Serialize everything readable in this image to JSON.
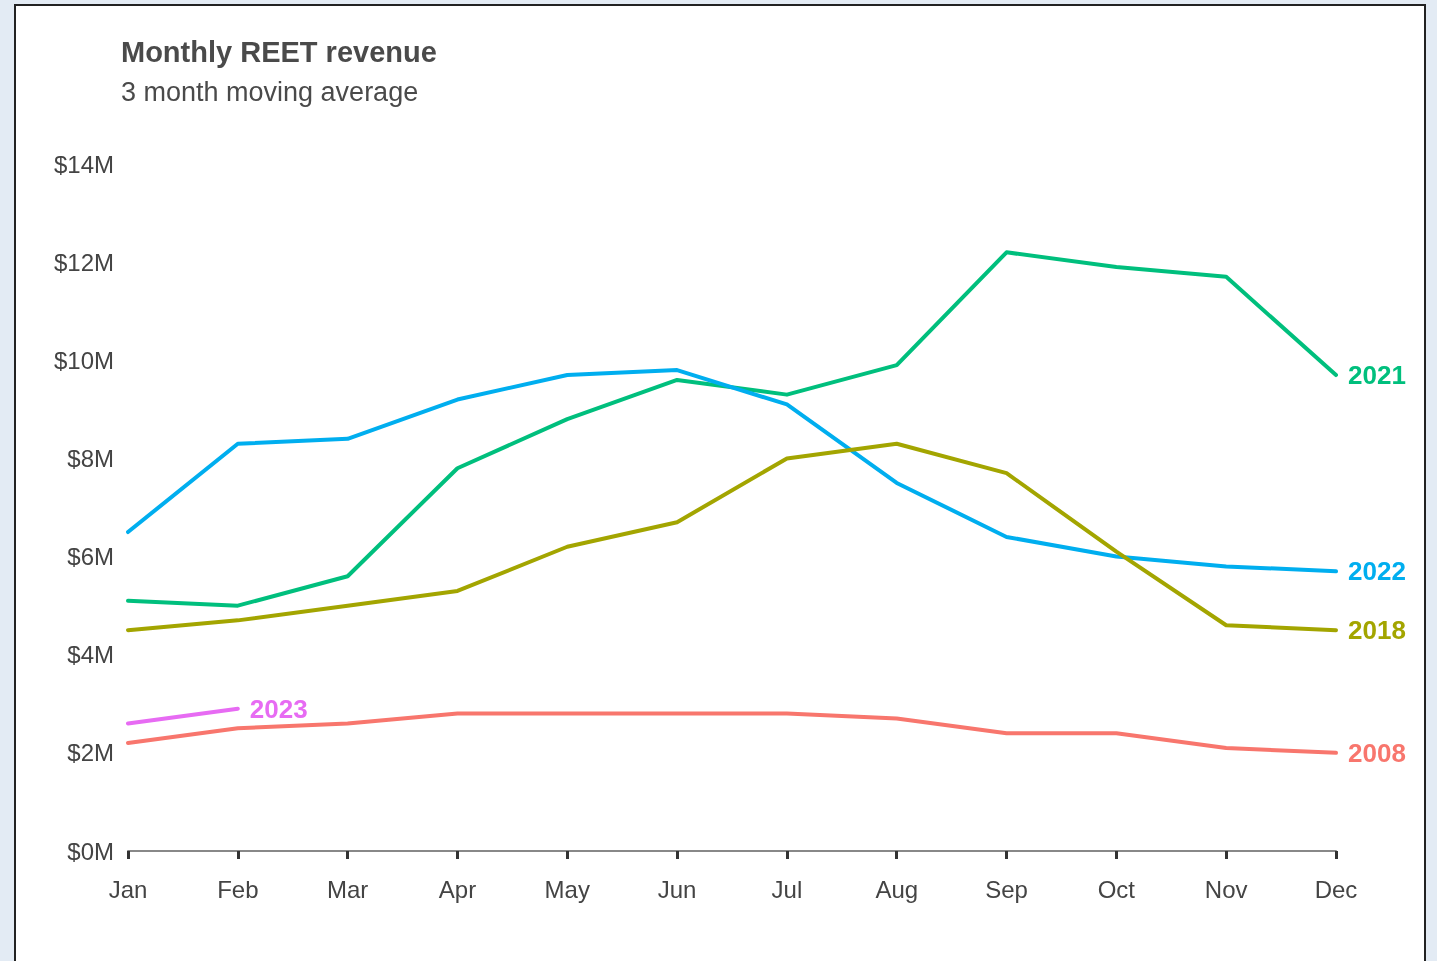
{
  "chart_data": {
    "type": "line",
    "title": "Monthly REET revenue",
    "subtitle": "3 month moving average",
    "categories": [
      "Jan",
      "Feb",
      "Mar",
      "Apr",
      "May",
      "Jun",
      "Jul",
      "Aug",
      "Sep",
      "Oct",
      "Nov",
      "Dec"
    ],
    "series": [
      {
        "name": "2021",
        "color": "#00bf7d",
        "values": [
          5.1,
          5.0,
          5.6,
          7.8,
          8.8,
          9.6,
          9.3,
          9.9,
          12.2,
          11.9,
          11.7,
          9.7
        ]
      },
      {
        "name": "2022",
        "color": "#00aeef",
        "values": [
          6.5,
          8.3,
          8.4,
          9.2,
          9.7,
          9.8,
          9.1,
          7.5,
          6.4,
          6.0,
          5.8,
          5.7
        ]
      },
      {
        "name": "2018",
        "color": "#a3a500",
        "values": [
          4.5,
          4.7,
          5.0,
          5.3,
          6.2,
          6.7,
          8.0,
          8.3,
          7.7,
          6.1,
          4.6,
          4.5
        ]
      },
      {
        "name": "2008",
        "color": "#f8766d",
        "values": [
          2.2,
          2.5,
          2.6,
          2.8,
          2.8,
          2.8,
          2.8,
          2.7,
          2.4,
          2.4,
          2.1,
          2.0
        ]
      },
      {
        "name": "2023",
        "color": "#e76bf3",
        "values": [
          2.6,
          2.9,
          null,
          null,
          null,
          null,
          null,
          null,
          null,
          null,
          null,
          null
        ]
      }
    ],
    "ylim": [
      0,
      14
    ],
    "yticks": [
      {
        "value": 0,
        "label": "$0M"
      },
      {
        "value": 2,
        "label": "$2M"
      },
      {
        "value": 4,
        "label": "$4M"
      },
      {
        "value": 6,
        "label": "$6M"
      },
      {
        "value": 8,
        "label": "$8M"
      },
      {
        "value": 10,
        "label": "$10M"
      },
      {
        "value": 12,
        "label": "$12M"
      },
      {
        "value": 14,
        "label": "$14M"
      }
    ],
    "grid": false,
    "legend": false,
    "marker": "none",
    "line_style": "solid"
  }
}
